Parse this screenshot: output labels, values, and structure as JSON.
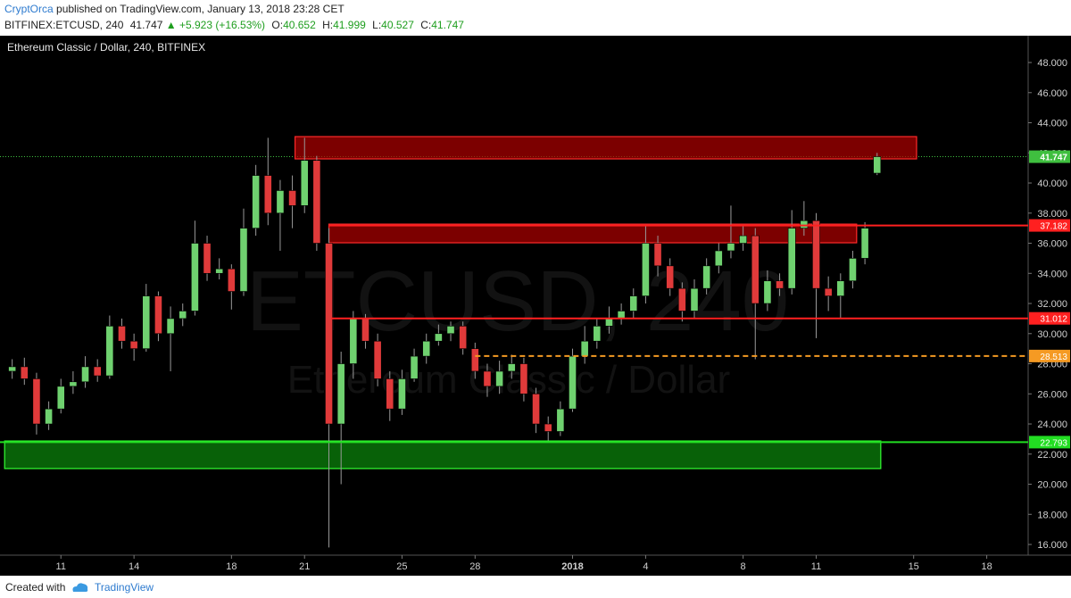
{
  "header": {
    "author": "CryptOrca",
    "published": "published on TradingView.com, January 13, 2018 23:28 CET",
    "symbol": "BITFINEX:ETCUSD, 240",
    "last": "41.747",
    "change": "▲ +5.923 (+16.53%)",
    "ohlc": [
      {
        "label": "O:",
        "value": "40.652"
      },
      {
        "label": "H:",
        "value": "41.999"
      },
      {
        "label": "L:",
        "value": "40.527"
      },
      {
        "label": "C:",
        "value": "41.747"
      }
    ]
  },
  "footer": {
    "created": "Created with",
    "brand": "TradingView"
  },
  "chart_data": {
    "type": "candlestick",
    "title": "Ethereum Classic / Dollar, 240, BITFINEX",
    "watermark": [
      "ETCUSD, 240",
      "Ethereum Classic / Dollar"
    ],
    "up_color": "#6fd16f",
    "down_color": "#e03a3a",
    "wick_color": "#9a9a9a",
    "grid": false,
    "xlim": [
      -2.5,
      39.7
    ],
    "ylim": [
      15.29,
      49.78
    ],
    "xticks": [
      {
        "value": 0,
        "label": "11"
      },
      {
        "value": 3,
        "label": "14"
      },
      {
        "value": 7,
        "label": "18"
      },
      {
        "value": 10,
        "label": "21"
      },
      {
        "value": 14,
        "label": "25"
      },
      {
        "value": 17,
        "label": "28"
      },
      {
        "value": 21,
        "label": "2018"
      },
      {
        "value": 24,
        "label": "4"
      },
      {
        "value": 28,
        "label": "8"
      },
      {
        "value": 31,
        "label": "11"
      },
      {
        "value": 35,
        "label": "15"
      },
      {
        "value": 38,
        "label": "18"
      }
    ],
    "yticks": [
      {
        "value": 16,
        "label": "16.000"
      },
      {
        "value": 18,
        "label": "18.000"
      },
      {
        "value": 20,
        "label": "20.000"
      },
      {
        "value": 22,
        "label": "22.000"
      },
      {
        "value": 24,
        "label": "24.000"
      },
      {
        "value": 26,
        "label": "26.000"
      },
      {
        "value": 28,
        "label": "28.000"
      },
      {
        "value": 30,
        "label": "30.000"
      },
      {
        "value": 32,
        "label": "32.000"
      },
      {
        "value": 34,
        "label": "34.000"
      },
      {
        "value": 36,
        "label": "36.000"
      },
      {
        "value": 38,
        "label": "38.000"
      },
      {
        "value": 40,
        "label": "40.000"
      },
      {
        "value": 42,
        "label": "42.000"
      },
      {
        "value": 44,
        "label": "44.000"
      },
      {
        "value": 46,
        "label": "46.000"
      },
      {
        "value": 48,
        "label": "48.000"
      }
    ],
    "x": [
      -2,
      -1.5,
      -1,
      -0.5,
      0,
      0.5,
      1,
      1.5,
      2,
      2.5,
      3,
      3.5,
      4,
      4.5,
      5,
      5.5,
      6,
      6.5,
      7,
      7.5,
      8,
      8.5,
      9,
      9.5,
      10,
      10.5,
      11,
      11.5,
      12,
      12.5,
      13,
      13.5,
      14,
      14.5,
      15,
      15.5,
      16,
      16.5,
      17,
      17.5,
      18,
      18.5,
      19,
      19.5,
      20,
      20.5,
      21,
      21.5,
      22,
      22.5,
      23,
      23.5,
      24,
      24.5,
      25,
      25.5,
      26,
      26.5,
      27,
      27.5,
      28,
      28.5,
      29,
      29.5,
      30,
      30.5,
      31,
      31.5,
      32,
      32.5,
      33,
      33.5
    ],
    "open": [
      27.5,
      27.8,
      27.0,
      24.0,
      25.0,
      26.5,
      26.8,
      27.8,
      27.2,
      30.5,
      29.5,
      29.0,
      32.5,
      30.0,
      31.0,
      31.5,
      36.0,
      34.0,
      34.3,
      32.8,
      37.0,
      40.5,
      38.0,
      39.5,
      38.5,
      41.5,
      36.0,
      24.0,
      28.0,
      31.0,
      29.5,
      27.0,
      25.0,
      27.0,
      28.5,
      29.5,
      30.0,
      30.5,
      29.0,
      27.5,
      26.5,
      27.5,
      28.0,
      26.0,
      24.0,
      23.5,
      25.0,
      28.5,
      29.5,
      30.5,
      31.0,
      31.5,
      32.5,
      36.0,
      34.5,
      33.0,
      31.5,
      33.0,
      34.5,
      35.5,
      36.0,
      36.5,
      32.0,
      33.5,
      33.0,
      37.0,
      37.5,
      33.0,
      32.5,
      33.5,
      35.0,
      40.652
    ],
    "high": [
      28.3,
      28.4,
      27.4,
      25.5,
      27.0,
      27.5,
      28.5,
      28.3,
      31.2,
      31.0,
      30.0,
      33.3,
      32.8,
      31.8,
      32.0,
      37.5,
      36.5,
      35.0,
      34.6,
      38.3,
      41.2,
      43.0,
      40.2,
      40.5,
      43.0,
      41.8,
      37.0,
      28.8,
      31.5,
      31.3,
      30.0,
      27.5,
      27.6,
      29.0,
      30.0,
      30.6,
      30.8,
      30.8,
      29.4,
      28.0,
      28.2,
      28.6,
      28.4,
      26.4,
      24.5,
      25.5,
      29.0,
      30.5,
      31.0,
      31.8,
      32.0,
      33.0,
      37.2,
      36.5,
      35.0,
      33.4,
      33.6,
      35.0,
      36.0,
      38.5,
      37.2,
      37.0,
      34.2,
      34.0,
      38.2,
      38.8,
      38.0,
      33.8,
      34.0,
      35.5,
      37.4,
      41.999
    ],
    "low": [
      27.0,
      26.6,
      23.3,
      23.6,
      24.7,
      26.0,
      26.4,
      26.8,
      27.0,
      29.0,
      28.2,
      28.8,
      29.5,
      27.5,
      30.5,
      31.2,
      33.5,
      33.6,
      31.6,
      32.5,
      36.5,
      37.2,
      35.5,
      37.0,
      38.0,
      35.5,
      15.8,
      20.0,
      27.0,
      29.0,
      26.5,
      24.2,
      24.6,
      26.8,
      28.0,
      29.2,
      29.5,
      28.6,
      27.0,
      25.8,
      26.0,
      27.0,
      25.5,
      23.4,
      22.9,
      23.2,
      24.8,
      28.0,
      29.0,
      30.0,
      30.6,
      31.0,
      32.0,
      33.8,
      32.5,
      30.8,
      31.0,
      32.6,
      34.0,
      35.0,
      35.5,
      28.3,
      31.5,
      32.5,
      32.6,
      36.5,
      29.7,
      31.5,
      31.0,
      33.0,
      34.6,
      40.527
    ],
    "close": [
      27.8,
      27.0,
      24.0,
      25.0,
      26.5,
      26.8,
      27.8,
      27.2,
      30.5,
      29.5,
      29.0,
      32.5,
      30.0,
      31.0,
      31.5,
      36.0,
      34.0,
      34.3,
      32.8,
      37.0,
      40.5,
      38.0,
      39.5,
      38.5,
      41.5,
      36.0,
      24.0,
      28.0,
      31.0,
      29.5,
      27.0,
      25.0,
      27.0,
      28.5,
      29.5,
      30.0,
      30.5,
      29.0,
      27.5,
      26.5,
      27.5,
      28.0,
      26.0,
      24.0,
      23.5,
      25.0,
      28.5,
      29.5,
      30.5,
      31.0,
      31.5,
      32.5,
      36.0,
      34.5,
      33.0,
      31.5,
      33.0,
      34.5,
      35.5,
      36.0,
      36.5,
      32.0,
      33.5,
      33.0,
      37.0,
      37.5,
      33.0,
      32.5,
      33.5,
      35.0,
      37.0,
      41.747
    ],
    "zones": [
      {
        "color": "#b00000",
        "border": "#ff2a2a",
        "x": [
          9.61,
          35.12
        ],
        "y": [
          41.6,
          43.08
        ]
      },
      {
        "color": "#b00000",
        "border": "#ff2a2a",
        "x": [
          11.0,
          32.66
        ],
        "y": [
          36.03,
          37.27
        ]
      },
      {
        "color": "#0b8a0b",
        "border": "#33ff33",
        "x": [
          -2.31,
          33.65
        ],
        "y": [
          21.04,
          22.87
        ]
      }
    ],
    "levels": [
      {
        "value": 37.182,
        "color": "#ff2020",
        "from": 11.0,
        "dashed": false
      },
      {
        "value": 31.012,
        "color": "#ff2020",
        "from": 11.1,
        "dashed": false
      },
      {
        "value": 28.513,
        "color": "#f59a23",
        "from": 17.0,
        "dashed": true
      },
      {
        "value": 22.793,
        "color": "#22dd22",
        "from": -2.5,
        "dashed": false
      }
    ],
    "last_price": {
      "value": 41.747,
      "color": "#3fbf3f"
    }
  }
}
